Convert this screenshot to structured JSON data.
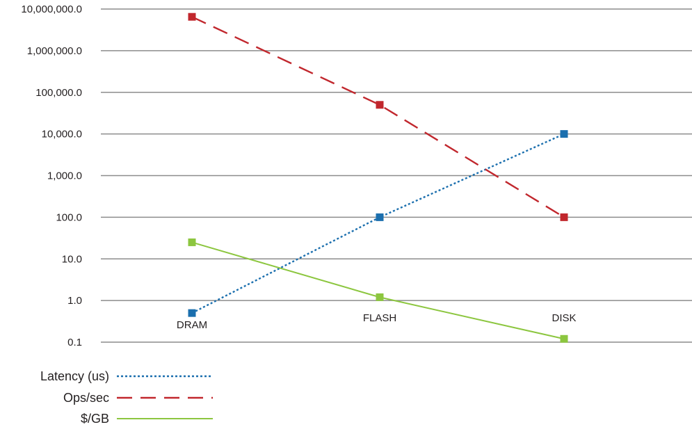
{
  "chart_data": {
    "type": "line",
    "title": "",
    "xlabel": "",
    "ylabel": "",
    "yscale": "log",
    "ylim": [
      0.1,
      10000000
    ],
    "grid": true,
    "legend_position": "bottom-left",
    "categories": [
      "DRAM",
      "FLASH",
      "DISK"
    ],
    "y_tick_labels": [
      "0.1",
      "1.0",
      "10.0",
      "100.0",
      "1,000.0",
      "10,000.0",
      "100,000.0",
      "1,000,000.0",
      "10,000,000.0"
    ],
    "series": [
      {
        "name": "Latency (us)",
        "values": [
          0.5,
          100,
          10000
        ],
        "color": "#1b6fae",
        "style": "dotted"
      },
      {
        "name": "Ops/sec",
        "values": [
          6500000,
          50000,
          100
        ],
        "color": "#c1272d",
        "style": "dashed"
      },
      {
        "name": "$/GB",
        "values": [
          25,
          1.2,
          0.12
        ],
        "color": "#8cc63f",
        "style": "solid"
      }
    ]
  }
}
